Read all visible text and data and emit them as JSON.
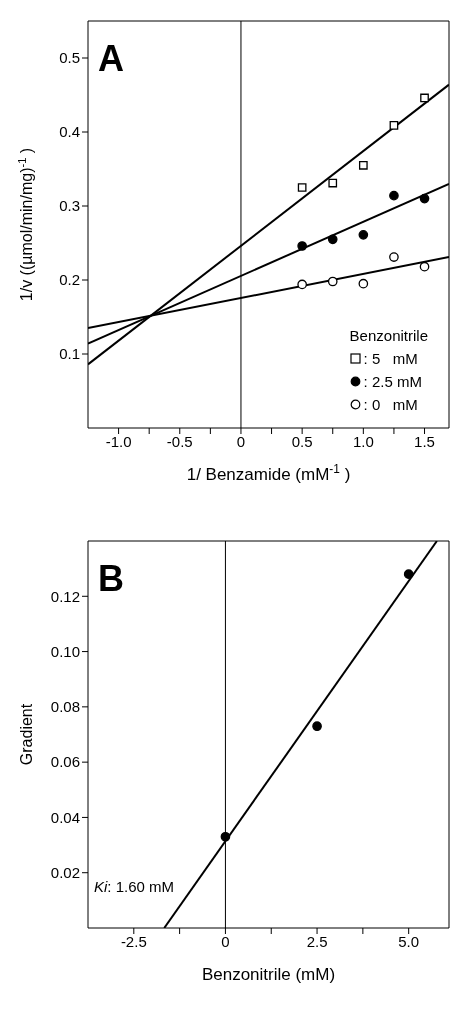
{
  "chart_data": [
    {
      "type": "scatter",
      "title": "A",
      "xlabel": "1/ Benzamide    (mM$^{-1}$)",
      "ylabel": "1/v   ((µmol/min/mg)$^{-1}$)",
      "legend_title": "Benzonitrile",
      "legend": "bottom right",
      "x": [
        0.5,
        0.75,
        1.0,
        1.25,
        1.5
      ],
      "series": [
        {
          "name": ": 5   mM",
          "color": "#ffffff",
          "marker": "square",
          "values": [
            0.325,
            0.331,
            0.355,
            0.409,
            0.446
          ]
        },
        {
          "name": ": 2.5 mM",
          "color": "#000000",
          "marker": "circle",
          "values": [
            0.246,
            0.255,
            0.261,
            0.314,
            0.31
          ]
        },
        {
          "name": ": 0   mM",
          "color": "#ffffff",
          "marker": "circle",
          "values": [
            0.194,
            0.198,
            0.195,
            0.231,
            0.218
          ]
        },
        {
          "type": "line",
          "color": "#000000",
          "x": [
            -1.25,
            1.7
          ],
          "values": [
            0.086,
            0.464
          ]
        },
        {
          "type": "line",
          "color": "#000000",
          "x": [
            -1.25,
            1.7
          ],
          "values": [
            0.114,
            0.33
          ]
        },
        {
          "type": "line",
          "color": "#000000",
          "x": [
            -1.25,
            1.7
          ],
          "values": [
            0.135,
            0.231
          ]
        }
      ],
      "xlim": [
        -1.25,
        1.7
      ],
      "ylim": [
        0,
        0.55
      ],
      "xticks": [
        {
          "value": -1.0,
          "label": "-1.0"
        },
        {
          "value": -0.75,
          "label": null
        },
        -0.5,
        {
          "value": -0.25,
          "label": null
        },
        0,
        {
          "value": 0.25,
          "label": null
        },
        0.5,
        {
          "value": 0.75,
          "label": null
        },
        {
          "value": 1.0,
          "label": "1.0"
        },
        {
          "value": 1.25,
          "label": null
        },
        1.5
      ],
      "yticks": [
        0.1,
        0.2,
        0.3,
        0.4,
        0.5
      ],
      "ref_lines": [
        {
          "axis": "x",
          "value": 0
        }
      ],
      "grid": false
    },
    {
      "type": "scatter",
      "title": "B",
      "xlabel": "Benzonitrile    (mM)",
      "ylabel": "Gradient",
      "legend": false,
      "annotations": [
        "Ki: 1.60 mM"
      ],
      "x": [
        0,
        2.5,
        5.0
      ],
      "series": [
        {
          "color": "#000000",
          "marker": "circle",
          "values": [
            0.033,
            0.073,
            0.128
          ]
        },
        {
          "type": "line",
          "color": "#000000",
          "x": [
            -1.67,
            5.77
          ],
          "values": [
            0,
            0.14
          ]
        }
      ],
      "xlim": [
        -3.75,
        6.1
      ],
      "ylim": [
        0,
        0.14
      ],
      "xticks": [
        -2.5,
        {
          "value": -1.25,
          "label": null
        },
        0,
        {
          "value": 1.25,
          "label": null
        },
        2.5,
        {
          "value": 3.75,
          "label": null
        },
        {
          "value": 5.0,
          "label": "5.0"
        }
      ],
      "yticks": [
        {
          "value": 0.02,
          "label": "0.02"
        },
        {
          "value": 0.04,
          "label": "0.04"
        },
        {
          "value": 0.06,
          "label": "0.06"
        },
        {
          "value": 0.08,
          "label": "0.08"
        },
        {
          "value": 0.1,
          "label": "0.10"
        },
        {
          "value": 0.12,
          "label": "0.12"
        }
      ],
      "ref_lines": [
        {
          "axis": "x",
          "value": 0
        }
      ],
      "grid": false
    }
  ]
}
